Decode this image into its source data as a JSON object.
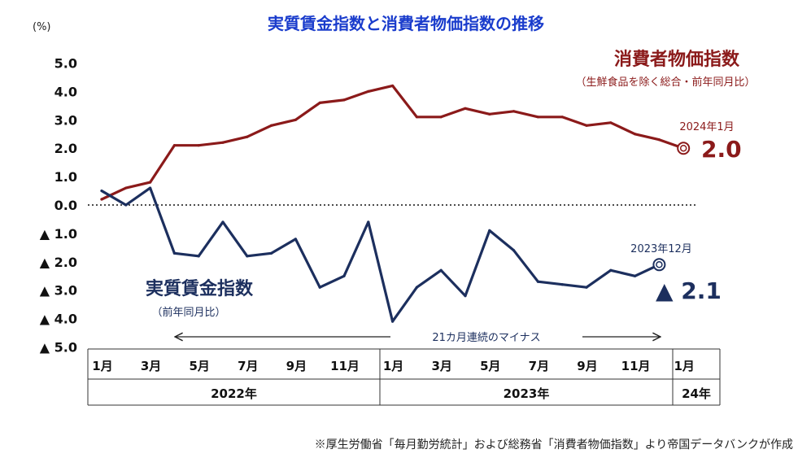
{
  "chart_data": {
    "type": "line",
    "title": "実質賃金指数と消費者物価指数の推移",
    "ylabel": "(%)",
    "ylim": [
      -5,
      5
    ],
    "yticks": [
      {
        "value": 5,
        "label": "5.0"
      },
      {
        "value": 4,
        "label": "4.0"
      },
      {
        "value": 3,
        "label": "3.0"
      },
      {
        "value": 2,
        "label": "2.0"
      },
      {
        "value": 1,
        "label": "1.0"
      },
      {
        "value": 0,
        "label": "0.0"
      },
      {
        "value": -1,
        "label": "▲ 1.0"
      },
      {
        "value": -2,
        "label": "▲ 2.0"
      },
      {
        "value": -3,
        "label": "▲ 3.0"
      },
      {
        "value": -4,
        "label": "▲ 4.0"
      },
      {
        "value": -5,
        "label": "▲ 5.0"
      }
    ],
    "xticks": [
      {
        "index": 0,
        "label": "1月"
      },
      {
        "index": 2,
        "label": "3月"
      },
      {
        "index": 4,
        "label": "5月"
      },
      {
        "index": 6,
        "label": "7月"
      },
      {
        "index": 8,
        "label": "9月"
      },
      {
        "index": 10,
        "label": "11月"
      },
      {
        "index": 12,
        "label": "1月"
      },
      {
        "index": 14,
        "label": "3月"
      },
      {
        "index": 16,
        "label": "5月"
      },
      {
        "index": 18,
        "label": "7月"
      },
      {
        "index": 20,
        "label": "9月"
      },
      {
        "index": 22,
        "label": "11月"
      },
      {
        "index": 24,
        "label": "1月"
      }
    ],
    "years": [
      {
        "label": "2022年",
        "start": 0,
        "end": 11
      },
      {
        "label": "2023年",
        "start": 12,
        "end": 23
      },
      {
        "label": "24年",
        "start": 24,
        "end": 24
      }
    ],
    "series": [
      {
        "name": "消費者物価指数",
        "subtitle": "（生鮮食品を除く総合・前年同月比）",
        "color": "#8b1a1a",
        "values": [
          0.2,
          0.6,
          0.8,
          2.1,
          2.1,
          2.2,
          2.4,
          2.8,
          3.0,
          3.6,
          3.7,
          4.0,
          4.2,
          3.1,
          3.1,
          3.4,
          3.2,
          3.3,
          3.1,
          3.1,
          2.8,
          2.9,
          2.5,
          2.3,
          2.0
        ],
        "end_date": "2024年1月",
        "end_value": "2.0"
      },
      {
        "name": "実質賃金指数",
        "subtitle": "（前年同月比）",
        "color": "#1c2f5e",
        "values": [
          0.5,
          0.0,
          0.6,
          -1.7,
          -1.8,
          -0.6,
          -1.8,
          -1.7,
          -1.2,
          -2.9,
          -2.5,
          -0.6,
          -4.1,
          -2.9,
          -2.3,
          -3.2,
          -0.9,
          -1.6,
          -2.7,
          -2.8,
          -2.9,
          -2.3,
          -2.5,
          -2.1
        ],
        "end_date": "2023年12月",
        "end_value": "▲ 2.1"
      }
    ],
    "annotation": "21カ月連続のマイナス"
  },
  "footnote": "※厚生労働省「毎月勤労統計」および総務省「消費者物価指数」より帝国データバンクが作成"
}
